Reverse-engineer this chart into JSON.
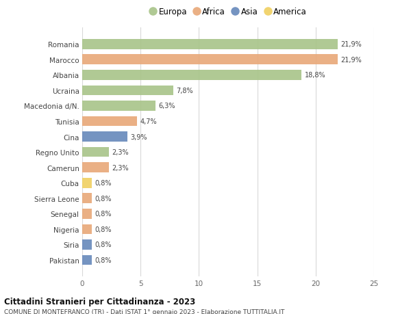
{
  "countries": [
    "Romania",
    "Marocco",
    "Albania",
    "Ucraina",
    "Macedonia d/N.",
    "Tunisia",
    "Cina",
    "Regno Unito",
    "Camerun",
    "Cuba",
    "Sierra Leone",
    "Senegal",
    "Nigeria",
    "Siria",
    "Pakistan"
  ],
  "values": [
    21.9,
    21.9,
    18.8,
    7.8,
    6.3,
    4.7,
    3.9,
    2.3,
    2.3,
    0.8,
    0.8,
    0.8,
    0.8,
    0.8,
    0.8
  ],
  "labels": [
    "21,9%",
    "21,9%",
    "18,8%",
    "7,8%",
    "6,3%",
    "4,7%",
    "3,9%",
    "2,3%",
    "2,3%",
    "0,8%",
    "0,8%",
    "0,8%",
    "0,8%",
    "0,8%",
    "0,8%"
  ],
  "continents": [
    "Europa",
    "Africa",
    "Europa",
    "Europa",
    "Europa",
    "Africa",
    "Asia",
    "Europa",
    "Africa",
    "America",
    "Africa",
    "Africa",
    "Africa",
    "Asia",
    "Asia"
  ],
  "continent_colors": {
    "Europa": "#a8c488",
    "Africa": "#e8a878",
    "Asia": "#6688bb",
    "America": "#f0d060"
  },
  "legend_order": [
    "Europa",
    "Africa",
    "Asia",
    "America"
  ],
  "title": "Cittadini Stranieri per Cittadinanza - 2023",
  "subtitle": "COMUNE DI MONTEFRANCO (TR) - Dati ISTAT 1° gennaio 2023 - Elaborazione TUTTITALIA.IT",
  "xlim": [
    0,
    25
  ],
  "xticks": [
    0,
    5,
    10,
    15,
    20,
    25
  ],
  "bg_color": "#ffffff",
  "grid_color": "#d8d8d8",
  "bar_height": 0.65
}
